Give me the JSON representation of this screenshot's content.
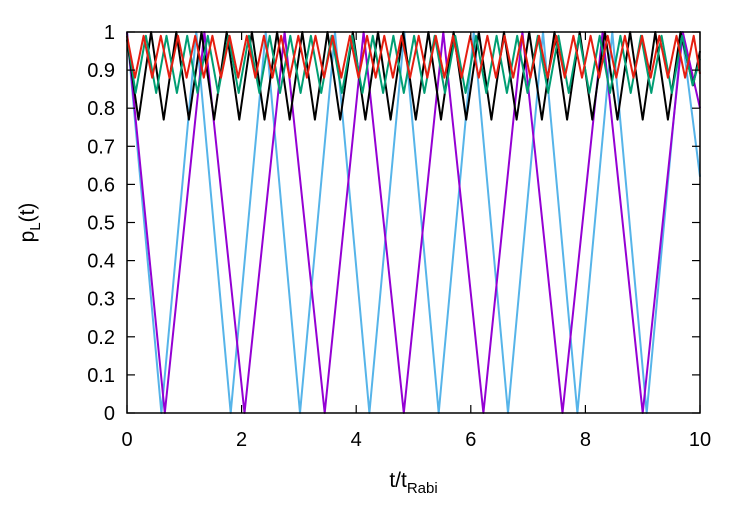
{
  "chart_data": {
    "type": "line",
    "title": "",
    "xlabel": {
      "main": "t/t",
      "sub": "Rabi"
    },
    "ylabel": {
      "main": "p",
      "sub": "L",
      "suffix": "(t)"
    },
    "xlim": [
      0,
      10
    ],
    "ylim": [
      0,
      1
    ],
    "xticks": [
      0,
      2,
      4,
      6,
      8,
      10
    ],
    "yticks": [
      0,
      0.1,
      0.2,
      0.3,
      0.4,
      0.5,
      0.6,
      0.7,
      0.8,
      0.9,
      1
    ],
    "xtick_labels": [
      "0",
      "2",
      "4",
      "6",
      "8",
      "10"
    ],
    "ytick_labels": [
      "0",
      "0.1",
      "0.2",
      "0.3",
      "0.4",
      "0.5",
      "0.6",
      "0.7",
      "0.8",
      "0.9",
      "1"
    ],
    "grid": false,
    "legend": "none",
    "series": [
      {
        "color": "#56b4e9",
        "x": [
          0,
          0.6,
          1.21,
          1.81,
          2.42,
          3.02,
          3.63,
          4.23,
          4.84,
          5.44,
          6.05,
          6.65,
          7.26,
          7.86,
          8.47,
          9.07,
          9.68,
          10
        ],
        "y": [
          1,
          0,
          1,
          0,
          1,
          0,
          1,
          0,
          1,
          0,
          1,
          0,
          1,
          0,
          1,
          0,
          1,
          0.62
        ]
      },
      {
        "color": "#9400d3",
        "x": [
          0,
          0.66,
          1.35,
          2.05,
          2.75,
          3.45,
          4.13,
          4.83,
          5.52,
          6.22,
          6.9,
          7.6,
          8.3,
          9.0,
          9.7,
          10
        ],
        "y": [
          1,
          0,
          1,
          0,
          1,
          0,
          1,
          0,
          1,
          0,
          1,
          0,
          1,
          0,
          1,
          0.8
        ]
      },
      {
        "color": "#000000",
        "x": [
          0,
          0.2,
          0.42,
          0.64,
          0.86,
          1.08,
          1.3,
          1.52,
          1.74,
          1.96,
          2.18,
          2.4,
          2.62,
          2.84,
          3.06,
          3.28,
          3.5,
          3.72,
          3.94,
          4.16,
          4.38,
          4.6,
          4.82,
          5.04,
          5.26,
          5.48,
          5.7,
          5.92,
          6.14,
          6.36,
          6.58,
          6.8,
          7.02,
          7.24,
          7.46,
          7.68,
          7.9,
          8.12,
          8.34,
          8.56,
          8.78,
          9.0,
          9.22,
          9.44,
          9.66,
          9.88,
          10
        ],
        "y": [
          0.98,
          0.77,
          1.0,
          0.77,
          1.0,
          0.77,
          1.0,
          0.77,
          1.0,
          0.77,
          1.0,
          0.77,
          1.0,
          0.77,
          1.0,
          0.77,
          1.0,
          0.77,
          1.0,
          0.77,
          1.0,
          0.77,
          1.0,
          0.77,
          1.0,
          0.77,
          1.0,
          0.77,
          1.0,
          0.77,
          1.0,
          0.77,
          1.0,
          0.77,
          1.0,
          0.77,
          1.0,
          0.77,
          1.0,
          0.77,
          1.0,
          0.77,
          1.0,
          0.77,
          1.0,
          0.86,
          0.95
        ]
      },
      {
        "color": "#009e73",
        "x": [
          0,
          0.15,
          0.33,
          0.51,
          0.69,
          0.87,
          1.05,
          1.23,
          1.41,
          1.59,
          1.77,
          1.95,
          2.13,
          2.31,
          2.49,
          2.67,
          2.85,
          3.03,
          3.21,
          3.39,
          3.57,
          3.75,
          3.93,
          4.11,
          4.29,
          4.47,
          4.65,
          4.83,
          5.01,
          5.19,
          5.37,
          5.55,
          5.73,
          5.91,
          6.09,
          6.27,
          6.45,
          6.63,
          6.81,
          6.99,
          7.17,
          7.35,
          7.53,
          7.71,
          7.89,
          8.07,
          8.25,
          8.43,
          8.61,
          8.79,
          8.97,
          9.15,
          9.33,
          9.51,
          9.69,
          9.87,
          10
        ],
        "y": [
          0.99,
          0.84,
          0.99,
          0.84,
          0.99,
          0.84,
          0.99,
          0.84,
          0.99,
          0.84,
          0.99,
          0.84,
          0.99,
          0.84,
          0.99,
          0.84,
          0.99,
          0.84,
          0.99,
          0.84,
          0.99,
          0.84,
          0.99,
          0.84,
          0.99,
          0.84,
          0.99,
          0.84,
          0.99,
          0.84,
          0.99,
          0.84,
          0.99,
          0.84,
          0.99,
          0.84,
          0.99,
          0.84,
          0.99,
          0.84,
          0.99,
          0.84,
          0.99,
          0.84,
          0.99,
          0.84,
          0.99,
          0.84,
          0.99,
          0.84,
          0.99,
          0.84,
          0.99,
          0.84,
          0.99,
          0.86,
          0.93
        ]
      },
      {
        "color": "#e51e10",
        "x": [
          0,
          0.14,
          0.29,
          0.44,
          0.59,
          0.74,
          0.89,
          1.04,
          1.19,
          1.34,
          1.49,
          1.64,
          1.79,
          1.94,
          2.09,
          2.24,
          2.39,
          2.54,
          2.69,
          2.84,
          2.99,
          3.14,
          3.29,
          3.44,
          3.59,
          3.74,
          3.89,
          4.04,
          4.19,
          4.34,
          4.49,
          4.64,
          4.79,
          4.94,
          5.09,
          5.24,
          5.39,
          5.54,
          5.69,
          5.84,
          5.99,
          6.14,
          6.29,
          6.44,
          6.59,
          6.74,
          6.89,
          7.04,
          7.19,
          7.34,
          7.49,
          7.64,
          7.79,
          7.94,
          8.09,
          8.24,
          8.39,
          8.54,
          8.69,
          8.84,
          8.99,
          9.14,
          9.29,
          9.44,
          9.59,
          9.74,
          9.89,
          10
        ],
        "y": [
          0.99,
          0.88,
          0.99,
          0.88,
          0.99,
          0.88,
          0.99,
          0.88,
          0.99,
          0.88,
          0.99,
          0.88,
          0.99,
          0.88,
          0.99,
          0.88,
          0.99,
          0.88,
          0.99,
          0.88,
          0.99,
          0.88,
          0.99,
          0.88,
          0.99,
          0.88,
          0.99,
          0.88,
          0.99,
          0.88,
          0.99,
          0.88,
          0.99,
          0.88,
          0.99,
          0.88,
          0.99,
          0.88,
          0.99,
          0.88,
          0.99,
          0.88,
          0.99,
          0.88,
          0.99,
          0.88,
          0.99,
          0.88,
          0.99,
          0.88,
          0.99,
          0.88,
          0.99,
          0.88,
          0.99,
          0.88,
          0.99,
          0.88,
          0.99,
          0.88,
          0.99,
          0.88,
          0.99,
          0.88,
          0.99,
          0.88,
          0.99,
          0.89
        ]
      }
    ]
  }
}
